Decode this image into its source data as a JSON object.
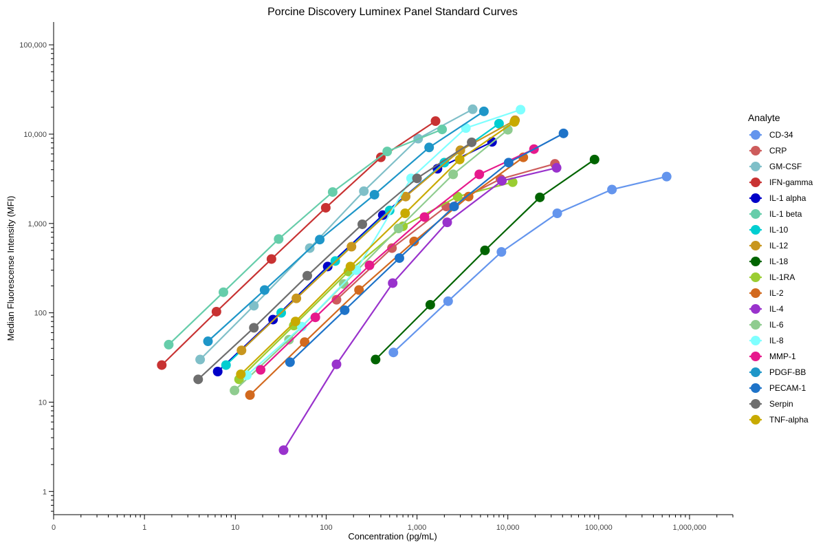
{
  "chart_data": {
    "type": "line",
    "title": "Porcine Discovery Luminex Panel Standard Curves",
    "xlabel": "Concentration (pg/mL)",
    "ylabel": "Median Fluorescense Intensity (MFI)",
    "x_scale": "log",
    "y_scale": "log",
    "xlim": [
      0.1,
      3000000
    ],
    "ylim": [
      0.55,
      180000
    ],
    "x_ticks": [
      {
        "value": 0.1,
        "label": "0"
      },
      {
        "value": 1,
        "label": "1"
      },
      {
        "value": 10,
        "label": "10"
      },
      {
        "value": 100,
        "label": "100"
      },
      {
        "value": 1000,
        "label": "1,000"
      },
      {
        "value": 10000,
        "label": "10,000"
      },
      {
        "value": 100000,
        "label": "100,000"
      },
      {
        "value": 1000000,
        "label": "1,000,000"
      }
    ],
    "y_ticks": [
      {
        "value": 1,
        "label": "1"
      },
      {
        "value": 10,
        "label": "10"
      },
      {
        "value": 100,
        "label": "100"
      },
      {
        "value": 1000,
        "label": "1,000"
      },
      {
        "value": 10000,
        "label": "10,000"
      },
      {
        "value": 100000,
        "label": "100,000"
      }
    ],
    "grid": false,
    "legend": {
      "title": "Analyte",
      "position": "right"
    },
    "series": [
      {
        "name": "CD-34",
        "color": "#6495ED",
        "x": [
          550,
          2200,
          8500,
          35000,
          140000,
          560000
        ],
        "y": [
          36,
          135,
          480,
          1300,
          2400,
          3350
        ]
      },
      {
        "name": "CRP",
        "color": "#CD5C5C",
        "x": [
          130,
          530,
          2100,
          8300,
          33000
        ],
        "y": [
          140,
          530,
          1550,
          3150,
          4650
        ]
      },
      {
        "name": "GM-CSF",
        "color": "#7FBFC8",
        "x": [
          4.1,
          16,
          66,
          260,
          1030,
          4100
        ],
        "y": [
          30,
          120,
          530,
          2300,
          8900,
          19000
        ]
      },
      {
        "name": "IFN-gamma",
        "color": "#C83232",
        "x": [
          1.55,
          6.2,
          25,
          99,
          400,
          1600
        ],
        "y": [
          26,
          103,
          400,
          1500,
          5500,
          14000
        ]
      },
      {
        "name": "IL-1 alpha",
        "color": "#0000C8",
        "x": [
          6.4,
          26,
          104,
          420,
          1680,
          6700
        ],
        "y": [
          22,
          84,
          330,
          1240,
          4100,
          8200
        ]
      },
      {
        "name": "IL-1 beta",
        "color": "#66CDAA",
        "x": [
          1.85,
          7.4,
          30,
          118,
          470,
          1890
        ],
        "y": [
          44,
          170,
          670,
          2250,
          6400,
          11300
        ]
      },
      {
        "name": "IL-10",
        "color": "#00CED1",
        "x": [
          7.9,
          32,
          126,
          500,
          2000,
          8000
        ],
        "y": [
          26,
          100,
          380,
          1400,
          4800,
          13100
        ]
      },
      {
        "name": "IL-12",
        "color": "#C8961E",
        "x": [
          11.7,
          47,
          190,
          750,
          3000,
          12000
        ],
        "y": [
          38,
          145,
          550,
          2000,
          6600,
          14300
        ]
      },
      {
        "name": "IL-18",
        "color": "#006400",
        "x": [
          350,
          1400,
          5600,
          22500,
          90000
        ],
        "y": [
          30,
          123,
          500,
          1960,
          5200
        ]
      },
      {
        "name": "IL-1RA",
        "color": "#9ACD32",
        "x": [
          11,
          44,
          176,
          700,
          2800,
          11300
        ],
        "y": [
          18,
          72,
          290,
          930,
          2000,
          2900
        ]
      },
      {
        "name": "IL-2",
        "color": "#D2691E",
        "x": [
          14.5,
          58,
          230,
          930,
          3700,
          14800
        ],
        "y": [
          12,
          47,
          180,
          630,
          2000,
          5500
        ]
      },
      {
        "name": "IL-4",
        "color": "#9932CC",
        "x": [
          34,
          130,
          540,
          2150,
          8600,
          34400
        ],
        "y": [
          2.9,
          26.5,
          215,
          1030,
          3000,
          4200
        ]
      },
      {
        "name": "IL-6",
        "color": "#8FCC8F",
        "x": [
          9.8,
          39,
          156,
          625,
          2500,
          10000
        ],
        "y": [
          13.5,
          50,
          210,
          880,
          3550,
          11200
        ]
      },
      {
        "name": "IL-8",
        "color": "#7FFFFF",
        "x": [
          13.4,
          54,
          215,
          860,
          3450,
          13800
        ],
        "y": [
          20,
          70,
          300,
          3200,
          11700,
          18800
        ]
      },
      {
        "name": "MMP-1",
        "color": "#E6198C",
        "x": [
          19,
          76,
          300,
          1210,
          4850,
          19400
        ],
        "y": [
          23,
          89,
          340,
          1180,
          3550,
          6800
        ]
      },
      {
        "name": "PDGF-BB",
        "color": "#1E96C8",
        "x": [
          5,
          21,
          85,
          340,
          1360,
          5450
        ],
        "y": [
          48,
          180,
          660,
          2100,
          7100,
          18000
        ]
      },
      {
        "name": "PECAM-1",
        "color": "#1E73C8",
        "x": [
          40,
          160,
          640,
          2560,
          10200,
          41000
        ],
        "y": [
          28,
          107,
          410,
          1550,
          4800,
          10200
        ]
      },
      {
        "name": "Serpin",
        "color": "#6E6E6E",
        "x": [
          3.9,
          16,
          62,
          250,
          1000,
          4000
        ],
        "y": [
          18,
          68,
          260,
          980,
          3200,
          8100
        ]
      },
      {
        "name": "TNF-alpha",
        "color": "#C8AA00",
        "x": [
          11.5,
          46,
          185,
          740,
          2950,
          11800
        ],
        "y": [
          20.5,
          80,
          330,
          1300,
          5200,
          13700
        ]
      }
    ]
  }
}
